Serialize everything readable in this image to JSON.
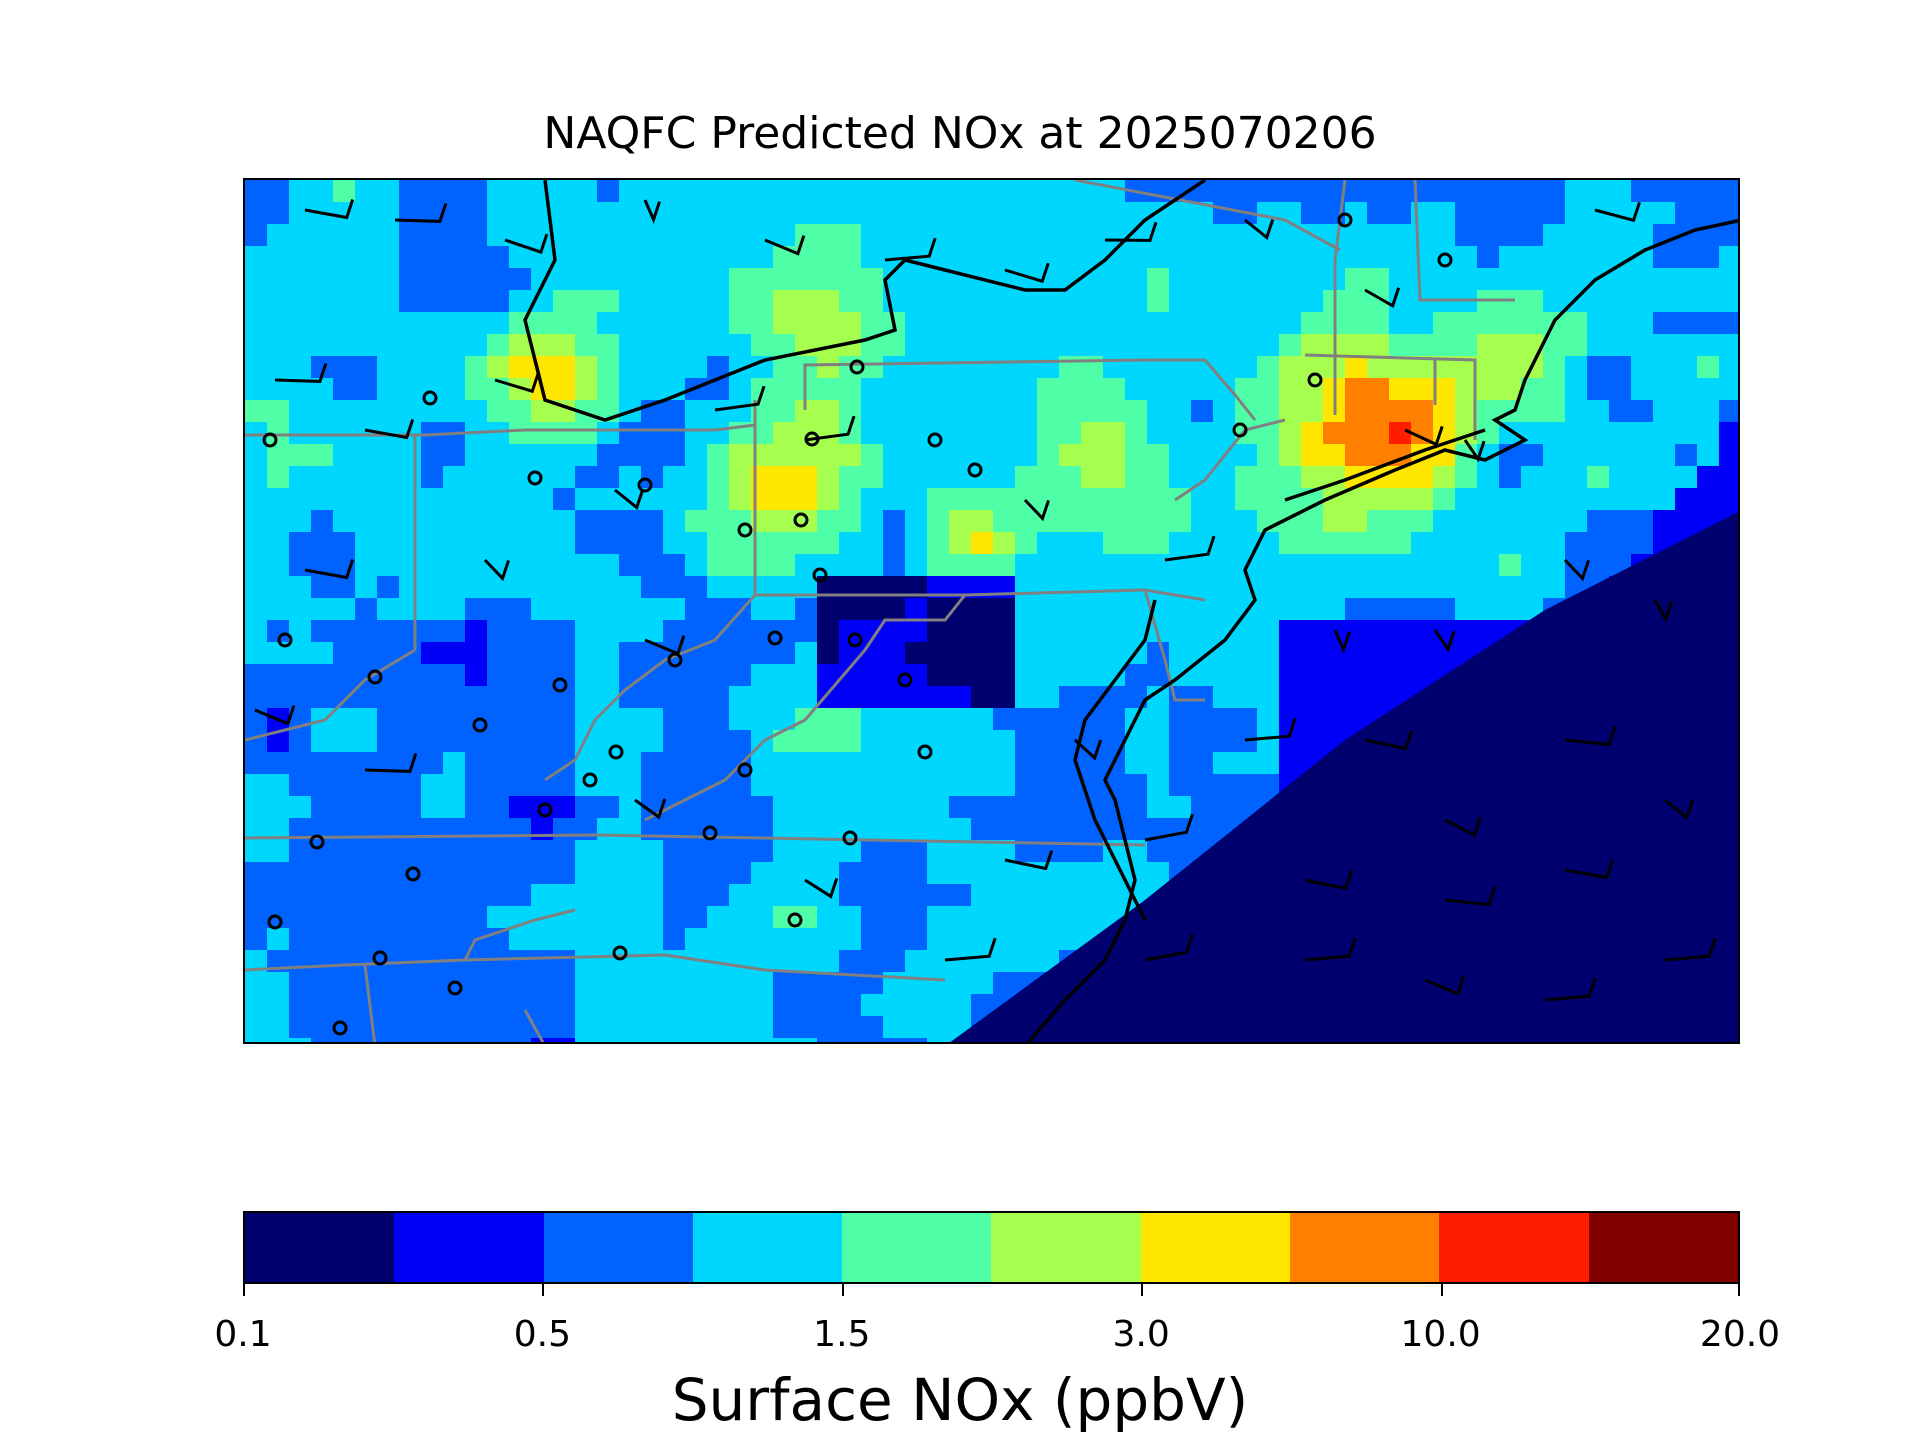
{
  "title": "NAQFC Predicted NOx at 2025070206",
  "colorbar": {
    "label": "Surface NOx (ppbV)",
    "colors": [
      "#00006f",
      "#0000f6",
      "#0062ff",
      "#00d7ff",
      "#4effa8",
      "#a6ff4e",
      "#ffe600",
      "#ff8000",
      "#ff1d00",
      "#800000"
    ],
    "ticks": [
      {
        "label": "0.1",
        "index": 0
      },
      {
        "label": "0.5",
        "index": 2
      },
      {
        "label": "1.5",
        "index": 4
      },
      {
        "label": "3.0",
        "index": 6
      },
      {
        "label": "10.0",
        "index": 8
      },
      {
        "label": "20.0",
        "index": 10
      }
    ]
  },
  "map": {
    "region": "Mid-Atlantic / Northeast US",
    "ocean_color": "#0000f6",
    "coastline_color": "#000000",
    "state_border_color": "#808080",
    "station_marker": "circle",
    "wind_barbs": true
  }
}
